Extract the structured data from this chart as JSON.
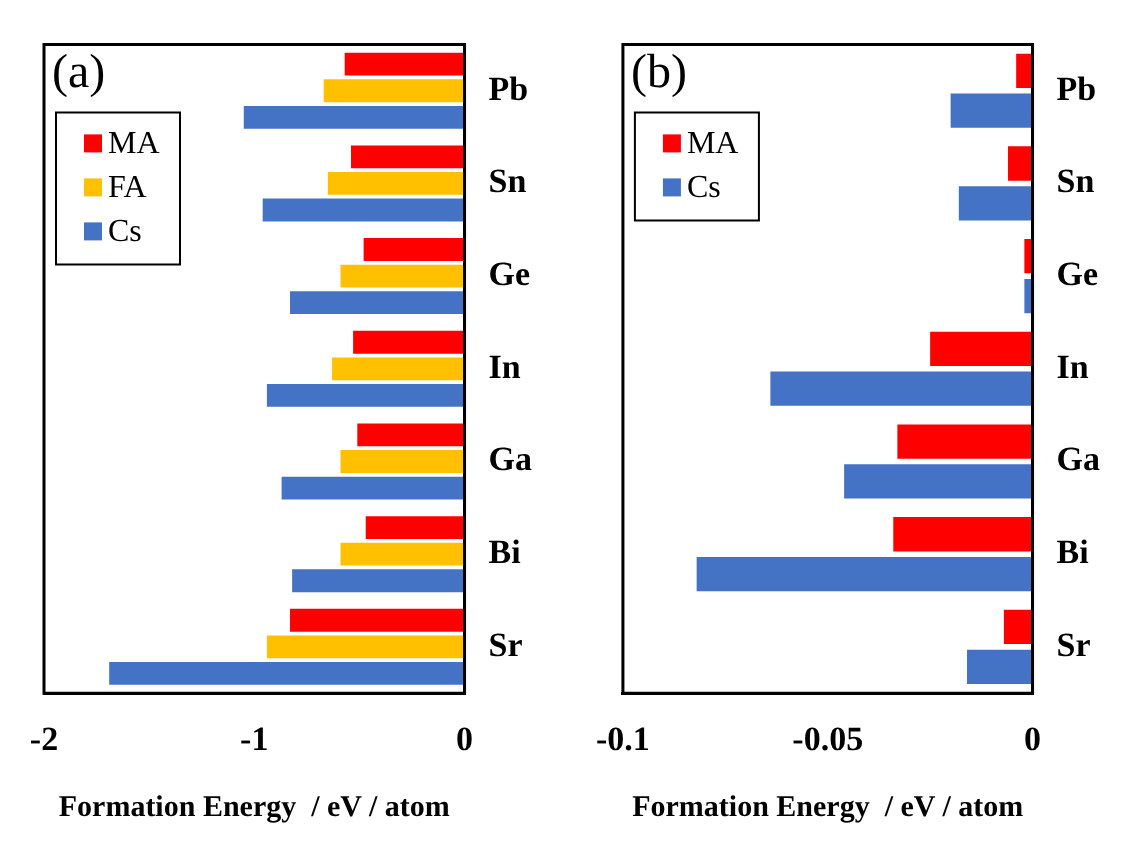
{
  "chart_data": [
    {
      "type": "bar",
      "orientation": "horizontal",
      "title": "(a)",
      "xlabel": "Formation Energy  / eV / atom",
      "categories": [
        "Pb",
        "Sn",
        "Ge",
        "In",
        "Ga",
        "Bi",
        "Sr"
      ],
      "xlim": [
        -2,
        0
      ],
      "xticks": [
        -2,
        -1,
        0
      ],
      "grid": false,
      "legend": "top left",
      "series": [
        {
          "name": "MA",
          "color": "#ff0000",
          "values": [
            -0.57,
            -0.54,
            -0.48,
            -0.53,
            -0.51,
            -0.47,
            -0.83
          ]
        },
        {
          "name": "FA",
          "color": "#ffc000",
          "values": [
            -0.67,
            -0.65,
            -0.59,
            -0.63,
            -0.59,
            -0.59,
            -0.94
          ]
        },
        {
          "name": "Cs",
          "color": "#4472c4",
          "values": [
            -1.05,
            -0.96,
            -0.83,
            -0.94,
            -0.87,
            -0.82,
            -1.69
          ]
        }
      ]
    },
    {
      "type": "bar",
      "orientation": "horizontal",
      "title": "(b)",
      "xlabel": "Formation Energy  / eV / atom",
      "categories": [
        "Pb",
        "Sn",
        "Ge",
        "In",
        "Ga",
        "Bi",
        "Sr"
      ],
      "xlim": [
        -0.1,
        0
      ],
      "xticks": [
        -0.1,
        -0.05,
        0
      ],
      "grid": false,
      "legend": "top left",
      "series": [
        {
          "name": "MA",
          "color": "#ff0000",
          "values": [
            -0.004,
            -0.006,
            -0.002,
            -0.025,
            -0.033,
            -0.034,
            -0.007
          ]
        },
        {
          "name": "Cs",
          "color": "#4472c4",
          "values": [
            -0.02,
            -0.018,
            -0.002,
            -0.064,
            -0.046,
            -0.082,
            -0.016
          ]
        }
      ]
    }
  ]
}
